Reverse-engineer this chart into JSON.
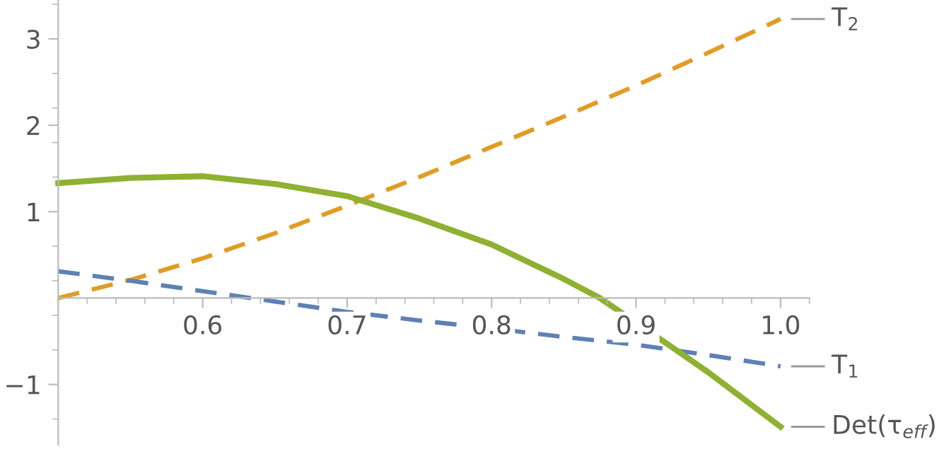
{
  "chart_data": {
    "type": "line",
    "xlim": [
      0.5,
      1.02
    ],
    "ylim": [
      -1.7,
      3.45
    ],
    "xticks": [
      0.6,
      0.7,
      0.8,
      0.9,
      {
        "value": 1,
        "label": "1.0"
      }
    ],
    "yticks": [
      -1,
      1,
      2,
      3
    ],
    "grid": false,
    "x": [
      0.5,
      0.55,
      0.6,
      0.65,
      0.7,
      0.75,
      0.8,
      0.85,
      0.9,
      0.95,
      1.0
    ],
    "series": [
      {
        "name": "T$_{2}$",
        "color": "#e19c24",
        "line_style": "dashed",
        "values": [
          0,
          0.21,
          0.46,
          0.75,
          1.07,
          1.4,
          1.75,
          2.1,
          2.46,
          2.84,
          3.23
        ]
      },
      {
        "name": "T$_{1}$",
        "color": "#5e81b5",
        "line_style": "dashed",
        "values": [
          0.31,
          0.2,
          0.08,
          -0.04,
          -0.16,
          -0.26,
          -0.35,
          -0.45,
          -0.54,
          -0.66,
          -0.79
        ]
      },
      {
        "name": "Det(τ$_{eff}$)",
        "color": "#8fb131",
        "line_style": "solid",
        "x": [
          0.5,
          0.55,
          0.6,
          0.65,
          0.7,
          0.75,
          0.8,
          0.85,
          0.875,
          0.925,
          0.95,
          1.0
        ],
        "values": [
          1.33,
          1.39,
          1.41,
          1.32,
          1.18,
          0.92,
          0.62,
          0.22,
          0.0,
          -0.57,
          -0.86,
          -1.49
        ]
      }
    ]
  }
}
